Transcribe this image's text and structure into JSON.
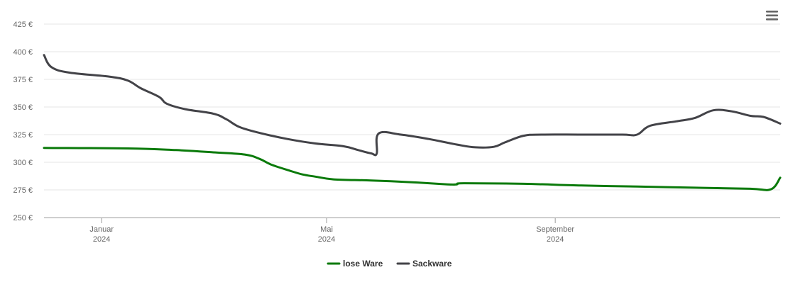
{
  "chart_data": {
    "type": "line",
    "title": "",
    "xlabel": "",
    "ylabel": "",
    "ylim": [
      250,
      425
    ],
    "yticks": [
      250,
      275,
      300,
      325,
      350,
      375,
      400,
      425
    ],
    "y_tick_labels": [
      "250 €",
      "275 €",
      "300 €",
      "325 €",
      "350 €",
      "375 €",
      "400 €",
      "425 €"
    ],
    "xlim": [
      "2023-12-01",
      "2024-12-31"
    ],
    "x_ticks": [
      {
        "date": "2024-01-01",
        "line1": "Januar",
        "line2": "2024"
      },
      {
        "date": "2024-05-01",
        "line1": "Mai",
        "line2": "2024"
      },
      {
        "date": "2024-09-01",
        "line1": "September",
        "line2": "2024"
      }
    ],
    "grid": true,
    "legend_position": "bottom-center",
    "series": [
      {
        "name": "lose Ware",
        "color": "#0a7a0a",
        "points": [
          [
            "2023-12-01",
            313
          ],
          [
            "2024-01-15",
            312.5
          ],
          [
            "2024-02-10",
            311
          ],
          [
            "2024-03-01",
            309
          ],
          [
            "2024-03-18",
            307
          ],
          [
            "2024-03-26",
            303
          ],
          [
            "2024-04-01",
            298
          ],
          [
            "2024-04-10",
            293
          ],
          [
            "2024-04-18",
            289
          ],
          [
            "2024-04-25",
            287
          ],
          [
            "2024-05-05",
            284.5
          ],
          [
            "2024-05-25",
            283.5
          ],
          [
            "2024-06-15",
            282
          ],
          [
            "2024-07-05",
            280
          ],
          [
            "2024-07-10",
            280
          ],
          [
            "2024-07-14",
            281
          ],
          [
            "2024-08-15",
            280.5
          ],
          [
            "2024-09-15",
            279
          ],
          [
            "2024-10-15",
            278
          ],
          [
            "2024-11-15",
            277
          ],
          [
            "2024-12-15",
            276
          ],
          [
            "2024-12-26",
            275.5
          ],
          [
            "2024-12-31",
            286
          ]
        ]
      },
      {
        "name": "Sackware",
        "color": "#434348",
        "points": [
          [
            "2023-12-01",
            397
          ],
          [
            "2023-12-05",
            386
          ],
          [
            "2023-12-15",
            381
          ],
          [
            "2024-01-05",
            377.5
          ],
          [
            "2024-01-15",
            374
          ],
          [
            "2024-01-22",
            367
          ],
          [
            "2024-02-01",
            359
          ],
          [
            "2024-02-05",
            353
          ],
          [
            "2024-02-15",
            348
          ],
          [
            "2024-03-01",
            344
          ],
          [
            "2024-03-08",
            339
          ],
          [
            "2024-03-15",
            332
          ],
          [
            "2024-03-25",
            327
          ],
          [
            "2024-04-10",
            321
          ],
          [
            "2024-04-25",
            317
          ],
          [
            "2024-05-10",
            314.5
          ],
          [
            "2024-05-18",
            311
          ],
          [
            "2024-05-25",
            308
          ],
          [
            "2024-05-28",
            308
          ],
          [
            "2024-05-29",
            326
          ],
          [
            "2024-06-10",
            325
          ],
          [
            "2024-06-25",
            321
          ],
          [
            "2024-07-10",
            316
          ],
          [
            "2024-07-20",
            313.5
          ],
          [
            "2024-07-30",
            314
          ],
          [
            "2024-08-05",
            318
          ],
          [
            "2024-08-15",
            324
          ],
          [
            "2024-08-25",
            325
          ],
          [
            "2024-09-15",
            325
          ],
          [
            "2024-10-07",
            325
          ],
          [
            "2024-10-15",
            325
          ],
          [
            "2024-10-22",
            333
          ],
          [
            "2024-11-05",
            337
          ],
          [
            "2024-11-15",
            340
          ],
          [
            "2024-11-25",
            347
          ],
          [
            "2024-12-05",
            346
          ],
          [
            "2024-12-15",
            342
          ],
          [
            "2024-12-22",
            341
          ],
          [
            "2024-12-31",
            335
          ]
        ]
      }
    ]
  },
  "menu": {
    "icon": "hamburger-menu-icon"
  }
}
